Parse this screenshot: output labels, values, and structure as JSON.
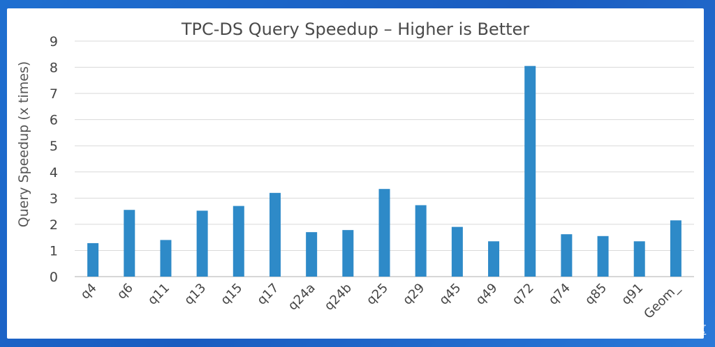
{
  "watermark": "@稀土掘金技术社区",
  "chart_data": {
    "type": "bar",
    "title": "TPC-DS Query Speedup – Higher is Better",
    "xlabel": "",
    "ylabel": "Query Speedup (x times)",
    "ylim": [
      0,
      9
    ],
    "yticks": [
      0,
      1,
      2,
      3,
      4,
      5,
      6,
      7,
      8,
      9
    ],
    "grid": true,
    "categories": [
      "q4",
      "q6",
      "q11",
      "q13",
      "q15",
      "q17",
      "q24a",
      "q24b",
      "q25",
      "q29",
      "q45",
      "q49",
      "q72",
      "q74",
      "q85",
      "q91",
      "Geom_"
    ],
    "values": [
      1.28,
      2.55,
      1.4,
      2.52,
      2.7,
      3.2,
      1.7,
      1.78,
      3.35,
      2.73,
      1.9,
      1.35,
      8.05,
      1.62,
      1.55,
      1.35,
      2.15
    ],
    "bar_color": "#2e8ac8"
  }
}
